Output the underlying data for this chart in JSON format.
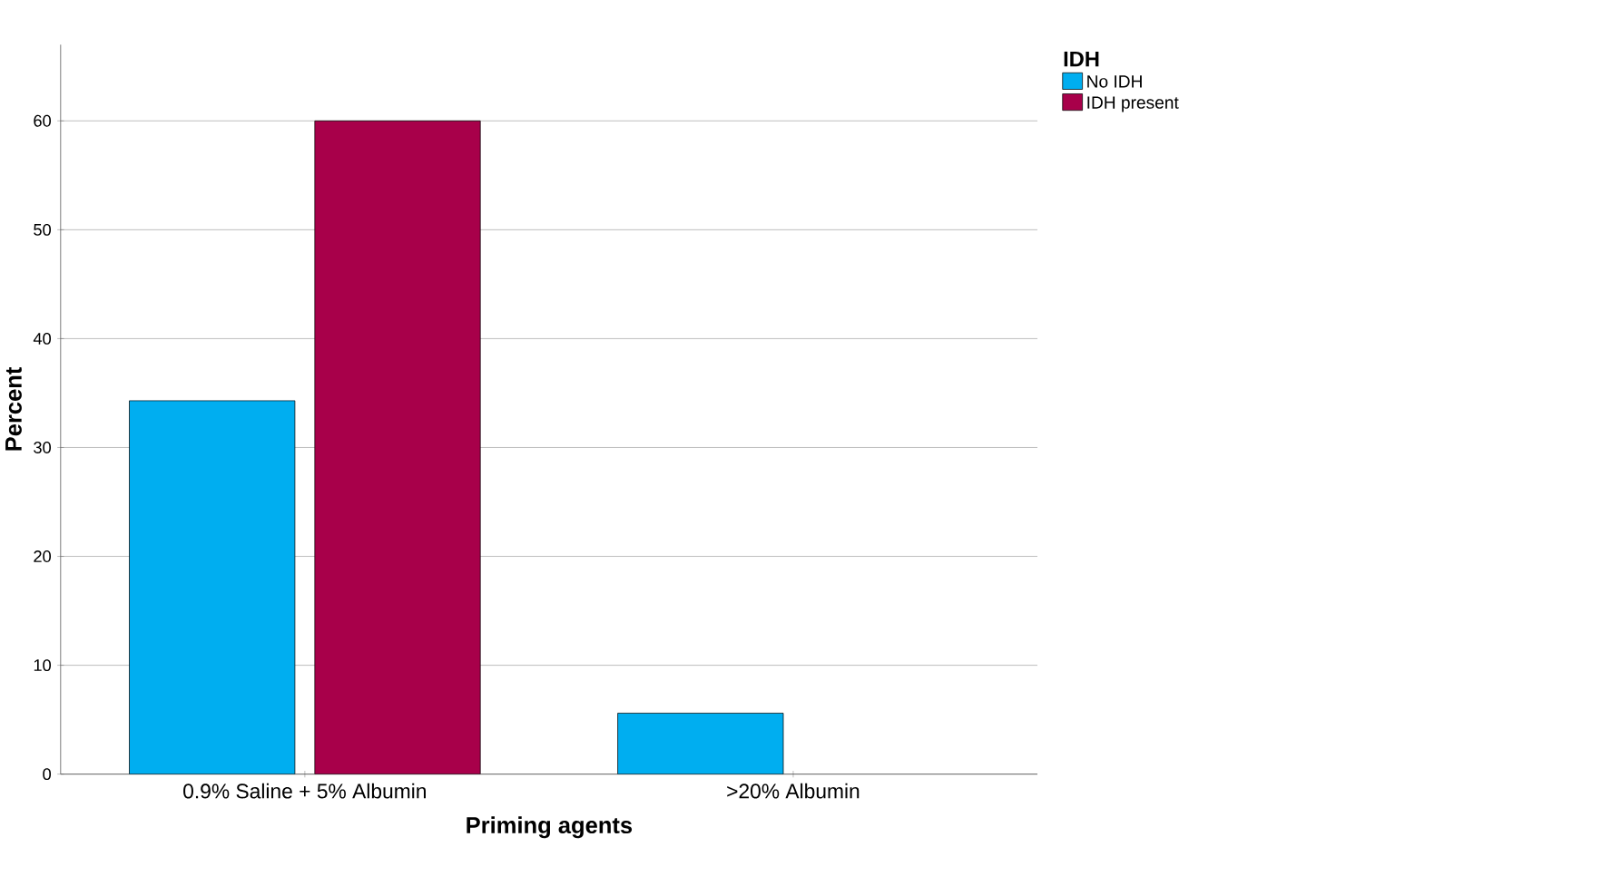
{
  "chart_data": {
    "type": "bar",
    "xlabel": "Priming agents",
    "ylabel": "Percent",
    "legend_title": "IDH",
    "categories": [
      "0.9% Saline + 5% Albumin",
      ">20% Albumin"
    ],
    "series": [
      {
        "name": "No IDH",
        "color": "#00aef0",
        "values": [
          34.3,
          5.6
        ]
      },
      {
        "name": "IDH present",
        "color": "#a8004a",
        "values": [
          60,
          null
        ]
      }
    ],
    "ylim": [
      0,
      67
    ],
    "yticks": [
      0,
      10,
      20,
      30,
      40,
      50,
      60
    ],
    "grid": "y",
    "legend": "top right"
  }
}
